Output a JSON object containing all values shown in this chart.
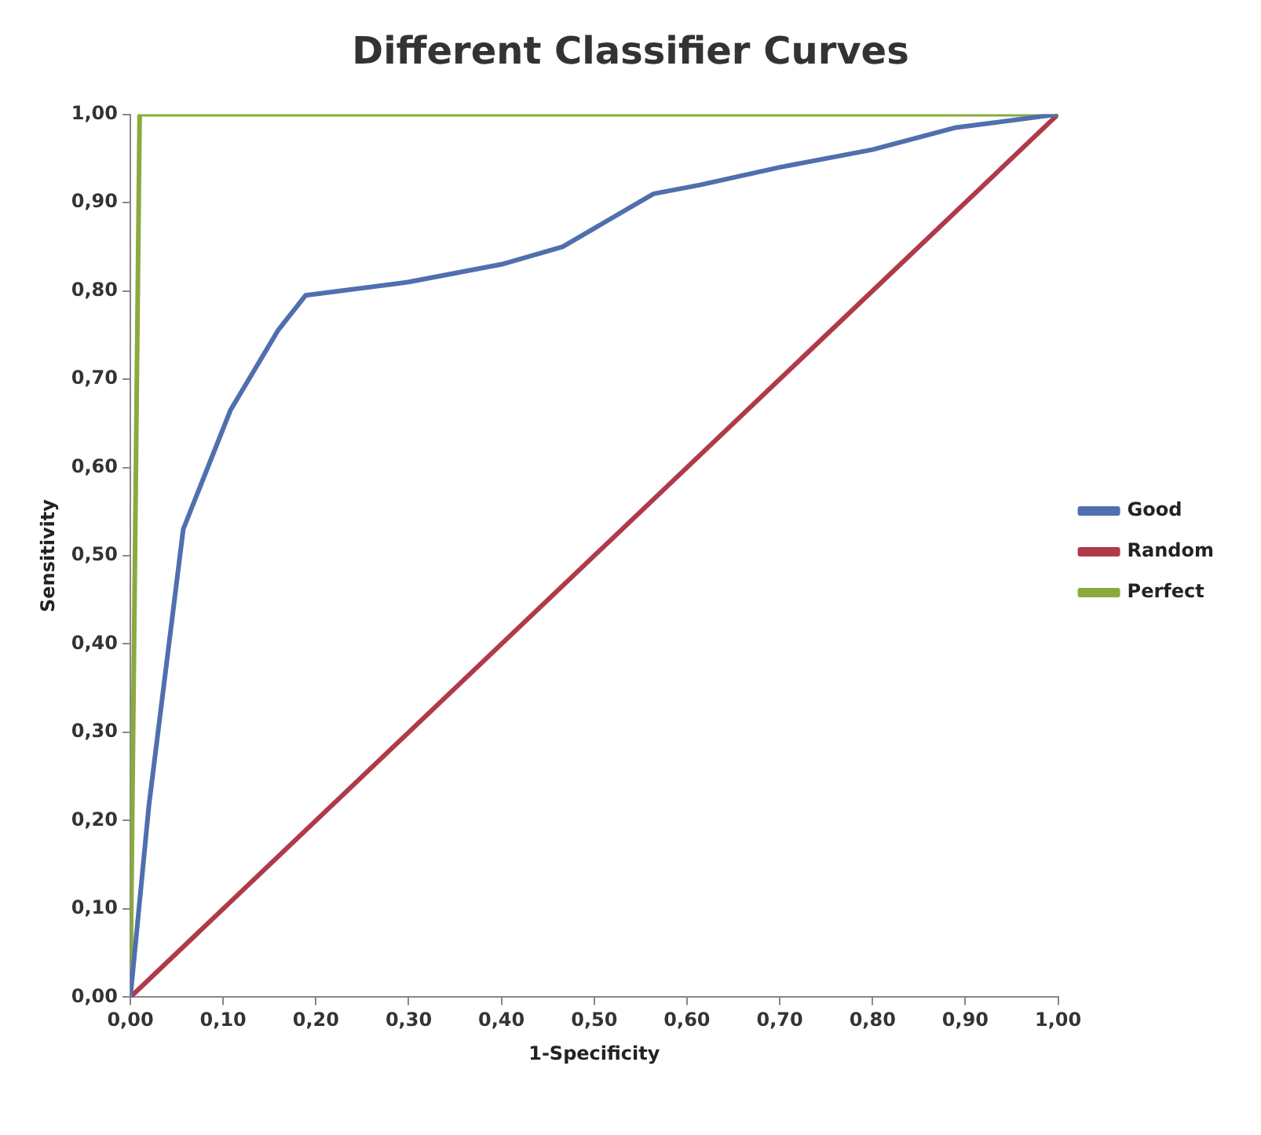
{
  "chart_data": {
    "type": "line",
    "title": "Different Classifier Curves",
    "xlabel": "1-Specificity",
    "ylabel": "Sensitivity",
    "series": [
      {
        "name": "Good",
        "color": "#4f6fae",
        "x": [
          0,
          0.02,
          0.057,
          0.108,
          0.159,
          0.189,
          0.3,
          0.4,
          0.466,
          0.564,
          0.614,
          0.7,
          0.8,
          0.89,
          1
        ],
        "values": [
          0,
          0.217,
          0.53,
          0.665,
          0.755,
          0.795,
          0.81,
          0.83,
          0.85,
          0.91,
          0.92,
          0.94,
          0.96,
          0.985,
          1
        ]
      },
      {
        "name": "Random",
        "color": "#b03a48",
        "x": [
          0,
          1
        ],
        "values": [
          0,
          1
        ]
      },
      {
        "name": "Perfect",
        "color": "#8aab3c",
        "x": [
          0,
          0.01,
          1
        ],
        "values": [
          0,
          1,
          1
        ]
      }
    ],
    "xlim": [
      0,
      1
    ],
    "ylim": [
      0,
      1
    ],
    "xticks": [
      {
        "value": 0,
        "label": "0,00"
      },
      {
        "value": 0.1,
        "label": "0,10"
      },
      {
        "value": 0.2,
        "label": "0,20"
      },
      {
        "value": 0.3,
        "label": "0,30"
      },
      {
        "value": 0.4,
        "label": "0,40"
      },
      {
        "value": 0.5,
        "label": "0,50"
      },
      {
        "value": 0.6,
        "label": "0,60"
      },
      {
        "value": 0.7,
        "label": "0,70"
      },
      {
        "value": 0.8,
        "label": "0,80"
      },
      {
        "value": 0.9,
        "label": "0,90"
      },
      {
        "value": 1,
        "label": "1,00"
      }
    ],
    "yticks": [
      {
        "value": 0,
        "label": "0,00"
      },
      {
        "value": 0.1,
        "label": "0,10"
      },
      {
        "value": 0.2,
        "label": "0,20"
      },
      {
        "value": 0.3,
        "label": "0,30"
      },
      {
        "value": 0.4,
        "label": "0,40"
      },
      {
        "value": 0.5,
        "label": "0,50"
      },
      {
        "value": 0.6,
        "label": "0,60"
      },
      {
        "value": 0.7,
        "label": "0,70"
      },
      {
        "value": 0.8,
        "label": "0,80"
      },
      {
        "value": 0.9,
        "label": "0,90"
      },
      {
        "value": 1,
        "label": "1,00"
      }
    ],
    "grid": false,
    "legend": "right",
    "marker": "none",
    "line_style": "solid"
  }
}
